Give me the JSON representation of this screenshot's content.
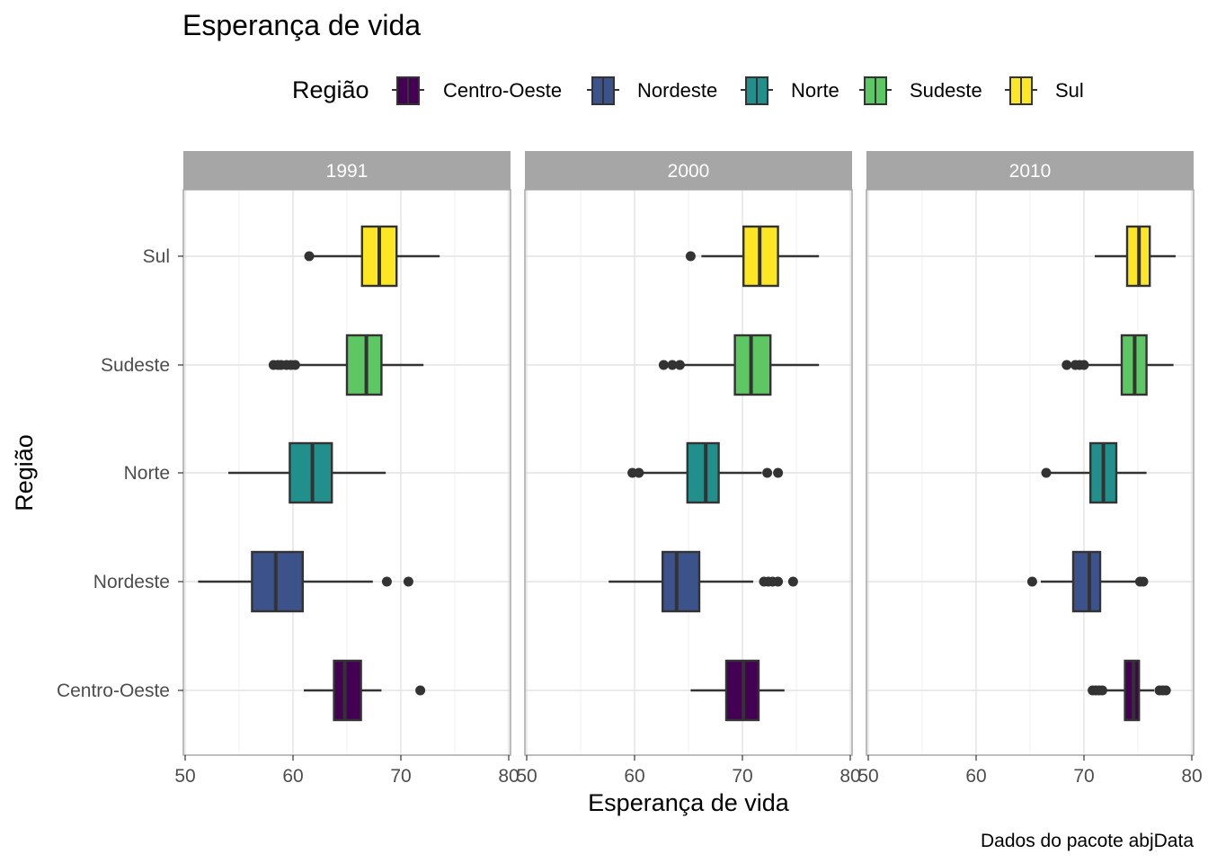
{
  "chart_data": {
    "type": "boxplot",
    "title": "Esperança de vida",
    "xlabel": "Esperança de vida",
    "ylabel": "Região",
    "caption": "Dados do pacote abjData",
    "legend": {
      "title": "Região",
      "position": "top"
    },
    "xlim": [
      50,
      80
    ],
    "xticks": [
      50,
      60,
      70,
      80
    ],
    "categories": [
      "Centro-Oeste",
      "Nordeste",
      "Norte",
      "Sudeste",
      "Sul"
    ],
    "colors": {
      "Centro-Oeste": "#440154",
      "Nordeste": "#3b528b",
      "Norte": "#21908c",
      "Sudeste": "#5dc863",
      "Sul": "#fde725"
    },
    "grid": true,
    "facets": [
      {
        "label": "1991",
        "boxes": [
          {
            "region": "Centro-Oeste",
            "whisker_low": 61.0,
            "q1": 63.8,
            "median": 64.8,
            "q3": 66.3,
            "whisker_high": 68.2,
            "outliers": [
              71.8
            ]
          },
          {
            "region": "Nordeste",
            "whisker_low": 51.2,
            "q1": 56.2,
            "median": 58.4,
            "q3": 60.9,
            "whisker_high": 67.4,
            "outliers": [
              68.7,
              70.7
            ]
          },
          {
            "region": "Norte",
            "whisker_low": 54.0,
            "q1": 59.7,
            "median": 61.8,
            "q3": 63.6,
            "whisker_high": 68.6,
            "outliers": []
          },
          {
            "region": "Sudeste",
            "whisker_low": 60.3,
            "q1": 65.0,
            "median": 66.8,
            "q3": 68.2,
            "whisker_high": 72.1,
            "outliers": [
              58.2,
              58.6,
              58.9,
              59.4,
              59.8,
              60.2
            ]
          },
          {
            "region": "Sul",
            "whisker_low": 61.5,
            "q1": 66.4,
            "median": 68.0,
            "q3": 69.6,
            "whisker_high": 73.6,
            "outliers": [
              61.5
            ]
          }
        ]
      },
      {
        "label": "2000",
        "boxes": [
          {
            "region": "Centro-Oeste",
            "whisker_low": 65.2,
            "q1": 68.5,
            "median": 70.1,
            "q3": 71.5,
            "whisker_high": 73.9,
            "outliers": []
          },
          {
            "region": "Nordeste",
            "whisker_low": 57.6,
            "q1": 62.6,
            "median": 63.9,
            "q3": 66.0,
            "whisker_high": 71.0,
            "outliers": [
              72.0,
              72.4,
              72.8,
              73.3,
              74.7
            ]
          },
          {
            "region": "Norte",
            "whisker_low": 60.8,
            "q1": 64.9,
            "median": 66.6,
            "q3": 67.8,
            "whisker_high": 71.8,
            "outliers": [
              59.8,
              60.4,
              72.3,
              73.3
            ]
          },
          {
            "region": "Sudeste",
            "whisker_low": 64.3,
            "q1": 69.3,
            "median": 70.8,
            "q3": 72.6,
            "whisker_high": 77.1,
            "outliers": [
              62.7,
              63.5,
              64.2
            ]
          },
          {
            "region": "Sul",
            "whisker_low": 66.2,
            "q1": 70.1,
            "median": 71.6,
            "q3": 73.3,
            "whisker_high": 77.1,
            "outliers": [
              65.2
            ]
          }
        ]
      },
      {
        "label": "2010",
        "boxes": [
          {
            "region": "Centro-Oeste",
            "whisker_low": 72.0,
            "q1": 73.8,
            "median": 74.6,
            "q3": 75.1,
            "whisker_high": 76.5,
            "outliers": [
              70.8,
              71.1,
              71.4,
              71.7,
              77.0,
              77.3,
              77.6
            ]
          },
          {
            "region": "Nordeste",
            "whisker_low": 66.0,
            "q1": 69.0,
            "median": 70.5,
            "q3": 71.5,
            "whisker_high": 74.8,
            "outliers": [
              65.2,
              75.2,
              75.5
            ]
          },
          {
            "region": "Norte",
            "whisker_low": 66.8,
            "q1": 70.6,
            "median": 71.8,
            "q3": 73.0,
            "whisker_high": 75.8,
            "outliers": [
              66.5
            ]
          },
          {
            "region": "Sudeste",
            "whisker_low": 70.2,
            "q1": 73.5,
            "median": 74.7,
            "q3": 75.8,
            "whisker_high": 78.3,
            "outliers": [
              68.4,
              69.2,
              69.6,
              70.0
            ]
          },
          {
            "region": "Sul",
            "whisker_low": 71.0,
            "q1": 74.0,
            "median": 75.1,
            "q3": 76.1,
            "whisker_high": 78.5,
            "outliers": []
          }
        ]
      }
    ]
  }
}
